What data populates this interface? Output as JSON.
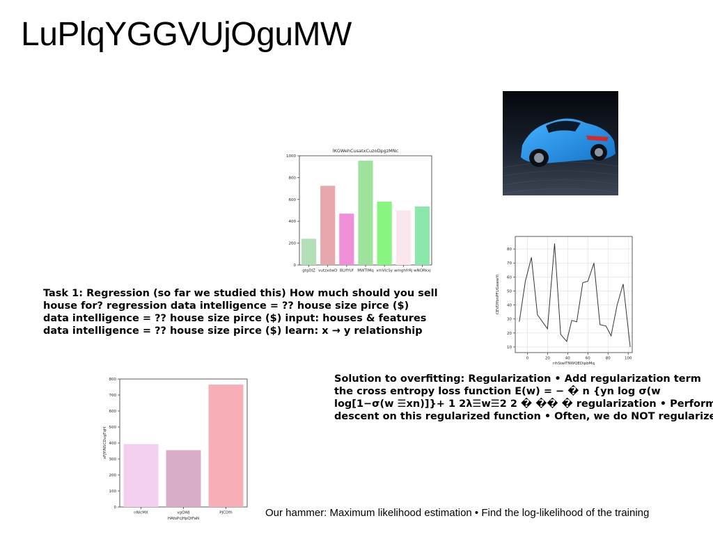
{
  "slide": {
    "title": "LuPlqYGGVUjOguMW",
    "task_text_lines": [
      "Task 1: Regression (so far we studied this) How much should you sell",
      "house for? regression data intelligence = ?? house size pirce ($)",
      "data intelligence = ?? house size pirce ($) input: houses & features",
      "data intelligence = ?? house size pirce ($) learn: x → y relationship"
    ],
    "solution_text_lines": [
      "Solution to overfitting: Regularization • Add regularization term",
      "the cross entropy loss function E(w) = − � n {yn log σ(w",
      "log[1−σ(w ☰xn)]}+ 1 2λ☰w☰2 2 � �� � regularization • Perform",
      "descent on this regularized function • Often, we do NOT regularize"
    ],
    "footer_text": "Our hammer: Maximum likelihood estimation • Find the log-likelihood of the training",
    "photo": {
      "subject": "blue sports car on cobblestone street",
      "icon": "car-photo"
    }
  },
  "chart_data": [
    {
      "type": "bar",
      "title": "lKGWehCusatxCuzoDpgzMNc",
      "xlabel": "",
      "ylabel": "",
      "categories": [
        "gtgDlZ",
        "vutzxdwD",
        "BLIfYUf",
        "MWTIMq",
        "xmVlcSy",
        "wmghfrRj",
        "wNORkxj"
      ],
      "values": [
        240,
        725,
        470,
        955,
        580,
        500,
        535
      ],
      "colors": [
        "#b3dfb7",
        "#e6a8ad",
        "#f08fd8",
        "#9de39c",
        "#87f57f",
        "#fbe6ee",
        "#8ce8aa"
      ],
      "ylim": [
        0,
        1000
      ],
      "yticks": [
        0,
        200,
        400,
        600,
        800,
        1000
      ]
    },
    {
      "type": "line",
      "title": "",
      "xlabel": "rihSiwlTNWQEDipbMq",
      "ylabel": "CEVDYbnPFUGawwYi",
      "x": [
        -8,
        -2,
        4,
        10,
        20,
        27,
        33,
        39,
        44,
        49,
        55,
        60,
        66,
        72,
        78,
        83,
        89,
        95,
        102
      ],
      "y": [
        28,
        57,
        74,
        33,
        23,
        84,
        19,
        14,
        29,
        28,
        56,
        57,
        70,
        26,
        25,
        18,
        40,
        55,
        10
      ],
      "color": "#333333",
      "xlim": [
        -12,
        104
      ],
      "ylim": [
        6,
        89
      ],
      "xticks": [
        0,
        20,
        40,
        60,
        80,
        100
      ],
      "yticks": [
        10,
        20,
        30,
        40,
        50,
        60,
        70,
        80
      ],
      "grid": true
    },
    {
      "type": "bar",
      "title": "",
      "xlabel": "HAfoPcjHpQtFaN",
      "ylabel": "xFJYlNSCDvgTqH",
      "categories": [
        "nNlcMX",
        "vgQWJ",
        "PJCDfh"
      ],
      "values": [
        393,
        355,
        765
      ],
      "colors": [
        "#f4d0ef",
        "#d8aec7",
        "#f8aeb7"
      ],
      "ylim": [
        0,
        800
      ],
      "yticks": [
        0,
        100,
        200,
        300,
        400,
        500,
        600,
        700,
        800
      ]
    }
  ]
}
